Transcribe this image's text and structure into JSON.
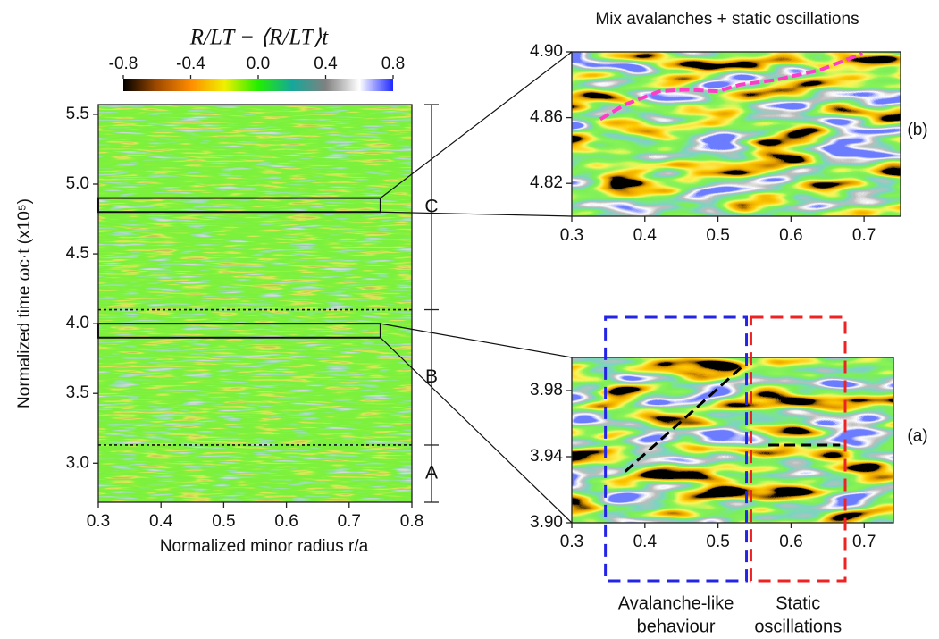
{
  "chart_data": [
    {
      "type": "heatmap",
      "xlabel": "Normalized minor radius r/a",
      "ylabel": "Normalized time ωc·t (x10⁵)",
      "xlim": [
        0.3,
        0.8
      ],
      "xticks": [
        0.3,
        0.4,
        0.5,
        0.6,
        0.7,
        0.8
      ],
      "ylim": [
        2.72,
        5.57
      ],
      "yticks": [
        {
          "value": 3,
          "label": "3.0"
        },
        3.5,
        {
          "value": 4,
          "label": "4.0"
        },
        4.5,
        {
          "value": 5,
          "label": "5.0"
        },
        5.5
      ],
      "colorbar": {
        "label": "R/LT − ⟨R/LT⟩t",
        "lim": [
          -0.8,
          0.8
        ],
        "ticks": [
          -0.8,
          -0.4,
          {
            "value": 0,
            "label": "0.0"
          },
          0.4,
          0.8
        ],
        "colors": [
          "#000000",
          "#a04a00",
          "#ff8c00",
          "#f0f000",
          "#22ee00",
          "#14a89a",
          "#808080",
          "#ffffff",
          "#1e28ff"
        ]
      },
      "phase_boundaries": [
        3.13,
        4.1
      ],
      "phases": [
        "A",
        "B",
        "C"
      ],
      "zoom_boxes": [
        {
          "xlim": [
            0.3,
            0.75
          ],
          "ylim": [
            4.8,
            4.9
          ]
        },
        {
          "xlim": [
            0.3,
            0.75
          ],
          "ylim": [
            3.9,
            4.0
          ]
        }
      ]
    },
    {
      "type": "heatmap",
      "title": "Mix avalanches + static oscillations",
      "panel_label": "(b)",
      "xlim": [
        0.3,
        0.75
      ],
      "xticks": [
        0.3,
        0.4,
        0.5,
        0.6,
        0.7
      ],
      "ylim": [
        4.8,
        4.9
      ],
      "yticks": [
        4.82,
        4.86,
        {
          "value": 4.9,
          "label": "4.90"
        }
      ],
      "lines": [
        {
          "color": "#ff3cc8",
          "x": [
            0.339,
            0.373,
            0.42,
            0.455,
            0.5,
            0.53,
            0.58,
            0.64,
            0.698
          ],
          "y": [
            4.859,
            4.868,
            4.876,
            4.877,
            4.876,
            4.88,
            4.883,
            4.889,
            4.899
          ]
        }
      ]
    },
    {
      "type": "heatmap",
      "panel_label": "(a)",
      "xlim": [
        0.3,
        0.74
      ],
      "xticks": [
        0.3,
        0.4,
        0.5,
        0.6,
        0.7
      ],
      "ylim": [
        3.9,
        4.0
      ],
      "yticks": [
        {
          "value": 3.9,
          "label": "3.90"
        },
        3.94,
        3.98
      ],
      "lines": [
        {
          "color": "#000000",
          "x": [
            0.373,
            0.532
          ],
          "y": [
            3.931,
            3.994
          ]
        },
        {
          "color": "#000000",
          "x": [
            0.569,
            0.667
          ],
          "y": [
            3.947,
            3.947
          ]
        }
      ],
      "regions": [
        {
          "label": [
            "Avalanche-like",
            "behaviour"
          ],
          "color": "#2424e6",
          "xlim": [
            0.346,
            0.539
          ]
        },
        {
          "label": [
            "Static",
            "oscillations"
          ],
          "color": "#ee2222",
          "xlim": [
            0.545,
            0.674
          ]
        }
      ]
    }
  ]
}
